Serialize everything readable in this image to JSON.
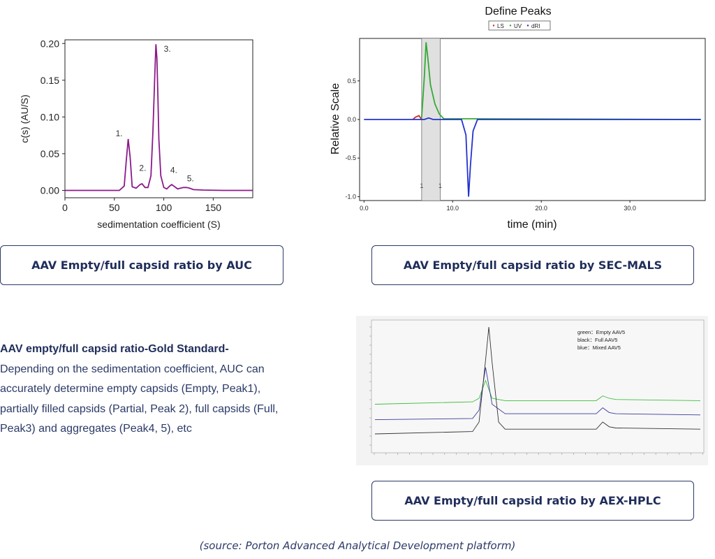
{
  "chart_data": [
    {
      "type": "line",
      "title": "",
      "xlabel": "sedimentation coefficient (S)",
      "ylabel": "c(s) (AU/S)",
      "xlim": [
        0,
        190
      ],
      "ylim": [
        -0.01,
        0.205
      ],
      "x_ticks": [
        "0",
        "50",
        "100",
        "150"
      ],
      "y_ticks": [
        "0.00",
        "0.05",
        "0.10",
        "0.15",
        "0.20"
      ],
      "line_color": "#8b1a8b",
      "series": [
        {
          "x": [
            0,
            55,
            60,
            62,
            64,
            66,
            68,
            72,
            76,
            78,
            81,
            84,
            87,
            89,
            91,
            92,
            93,
            94,
            95,
            97,
            100,
            103,
            106,
            108,
            111,
            114,
            117,
            120,
            123,
            126,
            130,
            140,
            160,
            190
          ],
          "y": [
            0,
            0,
            0.006,
            0.04,
            0.07,
            0.045,
            0.005,
            0.003,
            0.008,
            0.009,
            0.004,
            0.004,
            0.02,
            0.08,
            0.16,
            0.199,
            0.18,
            0.13,
            0.07,
            0.02,
            0.004,
            0.002,
            0.006,
            0.008,
            0.005,
            0.002,
            0.003,
            0.004,
            0.004,
            0.003,
            0.001,
            0.0005,
            0,
            0
          ]
        }
      ],
      "annotations": [
        {
          "label": "1.",
          "x": 64,
          "y": 0.07
        },
        {
          "label": "2.",
          "x": 78,
          "y": 0.024
        },
        {
          "label": "3.",
          "x": 93,
          "y": 0.183
        },
        {
          "label": "4.",
          "x": 108,
          "y": 0.024
        },
        {
          "label": "5.",
          "x": 122,
          "y": 0.017
        }
      ]
    },
    {
      "type": "line",
      "title": "Define Peaks",
      "xlabel": "time (min)",
      "ylabel": "Relative Scale",
      "xlim": [
        -0.5,
        38.5
      ],
      "ylim": [
        -1.05,
        1.05
      ],
      "x_ticks": [
        "0.0",
        "10.0",
        "20.0",
        "30.0"
      ],
      "y_ticks": [
        "0.5",
        "0.0",
        "-0.5",
        "-1.0"
      ],
      "legend": [
        "LS",
        "UV",
        "dRI"
      ],
      "legend_position": "top",
      "shaded_region": [
        6.5,
        8.6
      ],
      "region_markers": [
        "1",
        "1"
      ],
      "series": [
        {
          "name": "LS",
          "color": "#cc2a2a",
          "x": [
            5.5,
            5.8,
            6.2,
            6.5
          ],
          "y": [
            0.0,
            0.03,
            0.05,
            0.0
          ]
        },
        {
          "name": "UV",
          "color": "#33aa33",
          "x": [
            6.5,
            6.8,
            7.0,
            7.2,
            7.5,
            8.0,
            8.5,
            9.0,
            38
          ],
          "y": [
            0.02,
            0.55,
            1.0,
            0.8,
            0.45,
            0.2,
            0.07,
            0.01,
            0.0
          ]
        },
        {
          "name": "dRI",
          "color": "#2233cc",
          "x": [
            0,
            6.8,
            7.3,
            7.8,
            11.0,
            11.5,
            11.8,
            12.0,
            12.3,
            12.8,
            38
          ],
          "y": [
            0,
            0,
            0.02,
            0,
            0,
            -0.2,
            -1.0,
            -0.6,
            -0.15,
            0,
            0
          ]
        }
      ]
    },
    {
      "type": "line",
      "title": "",
      "legend": [
        "green：Empty AAV5",
        "black：Full AAV5",
        "blue：Mixed AAV5"
      ],
      "legend_position": "top-right",
      "series": [
        {
          "name": "Empty AAV5",
          "color": "#3cbf3c",
          "x": [
            0,
            30,
            32,
            34,
            36,
            40,
            45,
            68,
            70,
            72,
            74,
            100
          ],
          "y": [
            0.35,
            0.37,
            0.4,
            0.55,
            0.4,
            0.38,
            0.38,
            0.38,
            0.42,
            0.4,
            0.39,
            0.38
          ]
        },
        {
          "name": "Mixed AAV5",
          "color": "#3a3aa0",
          "x": [
            0,
            30,
            32,
            34,
            36,
            40,
            45,
            68,
            70,
            72,
            74,
            100
          ],
          "y": [
            0.22,
            0.23,
            0.3,
            0.66,
            0.35,
            0.27,
            0.27,
            0.27,
            0.32,
            0.28,
            0.27,
            0.26
          ]
        },
        {
          "name": "Full AAV5",
          "color": "#333333",
          "x": [
            0,
            30,
            32,
            34,
            35,
            36,
            38,
            40,
            45,
            68,
            70,
            72,
            74,
            100
          ],
          "y": [
            0.1,
            0.12,
            0.2,
            0.72,
            1.0,
            0.7,
            0.2,
            0.14,
            0.14,
            0.14,
            0.2,
            0.16,
            0.15,
            0.14
          ]
        }
      ]
    }
  ],
  "captions": {
    "auc": "AAV Empty/full capsid ratio by AUC",
    "sec_mals": "AAV Empty/full capsid ratio by SEC-MALS",
    "aex_hplc": "AAV Empty/full capsid ratio by AEX-HPLC"
  },
  "description": {
    "title": "AAV empty/full capsid ratio-Gold Standard-",
    "body": "Depending on the sedimentation coefficient, AUC can accurately determine empty capsids (Empty, Peak1), partially filled capsids (Partial, Peak 2), full capsids (Full, Peak3) and aggregates (Peak4, 5), etc"
  },
  "source": "(source: Porton Advanced Analytical Development platform)"
}
